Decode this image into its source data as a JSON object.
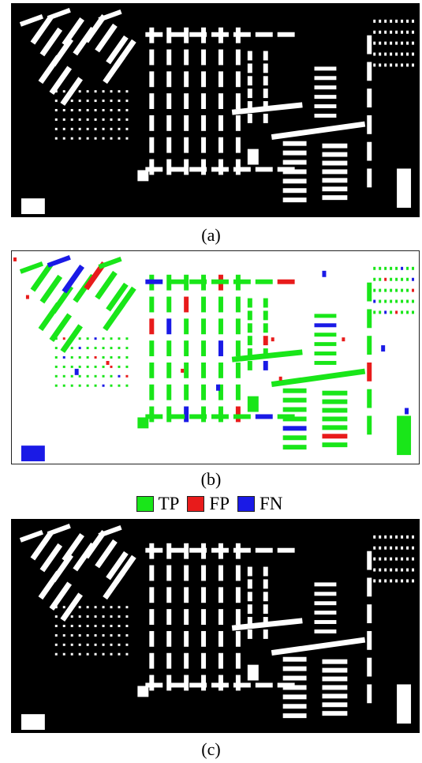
{
  "captions": {
    "a": "(a)",
    "b": "(b)",
    "c": "(c)"
  },
  "legend": [
    {
      "label": "TP",
      "color": "#19e619"
    },
    {
      "label": "FP",
      "color": "#e81b1b"
    },
    {
      "label": "FN",
      "color": "#1a1ae6"
    }
  ],
  "colors": {
    "building": "#ffffff",
    "background": "#000000",
    "tp": "#19e619",
    "fp": "#e81b1b",
    "fn": "#1a1ae6"
  }
}
